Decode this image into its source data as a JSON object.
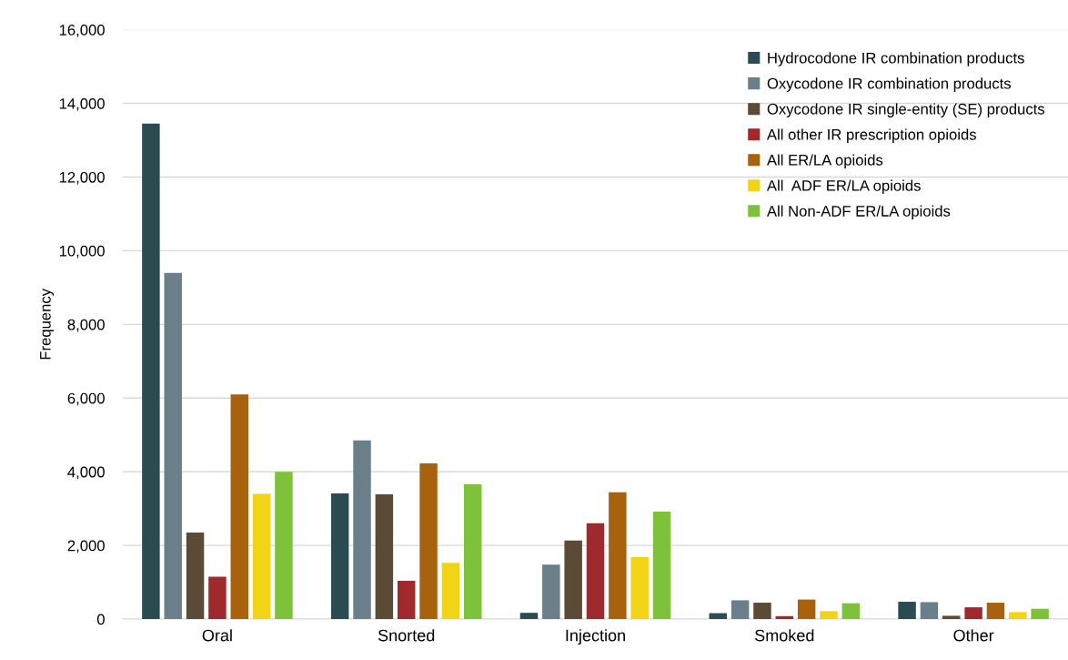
{
  "chart_data": {
    "type": "bar",
    "ylabel": "Frequency",
    "categories": [
      "Oral",
      "Snorted",
      "Injection",
      "Smoked",
      "Other"
    ],
    "series": [
      {
        "name": "Hydrocodone IR combination products",
        "color": "#2a4b52",
        "values": [
          13450,
          3410,
          170,
          160,
          470
        ]
      },
      {
        "name": "Oxycodone IR combination products",
        "color": "#6b7f8a",
        "values": [
          9400,
          4850,
          1480,
          510,
          460
        ]
      },
      {
        "name": "Oxycodone IR single-entity (SE) products",
        "color": "#5a4a36",
        "values": [
          2350,
          3390,
          2130,
          445,
          90
        ]
      },
      {
        "name": "All other IR prescription opioids",
        "color": "#a0292d",
        "values": [
          1150,
          1040,
          2600,
          80,
          320
        ]
      },
      {
        "name": "All ER/LA opioids",
        "color": "#a8620e",
        "values": [
          6100,
          4230,
          3440,
          530,
          445
        ]
      },
      {
        "name": "All  ADF ER/LA opioids",
        "color": "#f0d415",
        "values": [
          3400,
          1530,
          1680,
          215,
          190
        ]
      },
      {
        "name": "All Non-ADF ER/LA opioids",
        "color": "#7dc23a",
        "values": [
          4000,
          3660,
          2920,
          430,
          280
        ]
      }
    ],
    "ylim": [
      0,
      16000
    ],
    "yticks": [
      {
        "value": 0,
        "label": "0"
      },
      {
        "value": 2000,
        "label": "2,000"
      },
      {
        "value": 4000,
        "label": "4,000"
      },
      {
        "value": 6000,
        "label": "6,000"
      },
      {
        "value": 8000,
        "label": "8,000"
      },
      {
        "value": 10000,
        "label": "10,000"
      },
      {
        "value": 12000,
        "label": "12,000"
      },
      {
        "value": 14000,
        "label": "14,000"
      },
      {
        "value": 16000,
        "label": "16,000"
      }
    ],
    "grid": "y",
    "legend": "top right"
  }
}
